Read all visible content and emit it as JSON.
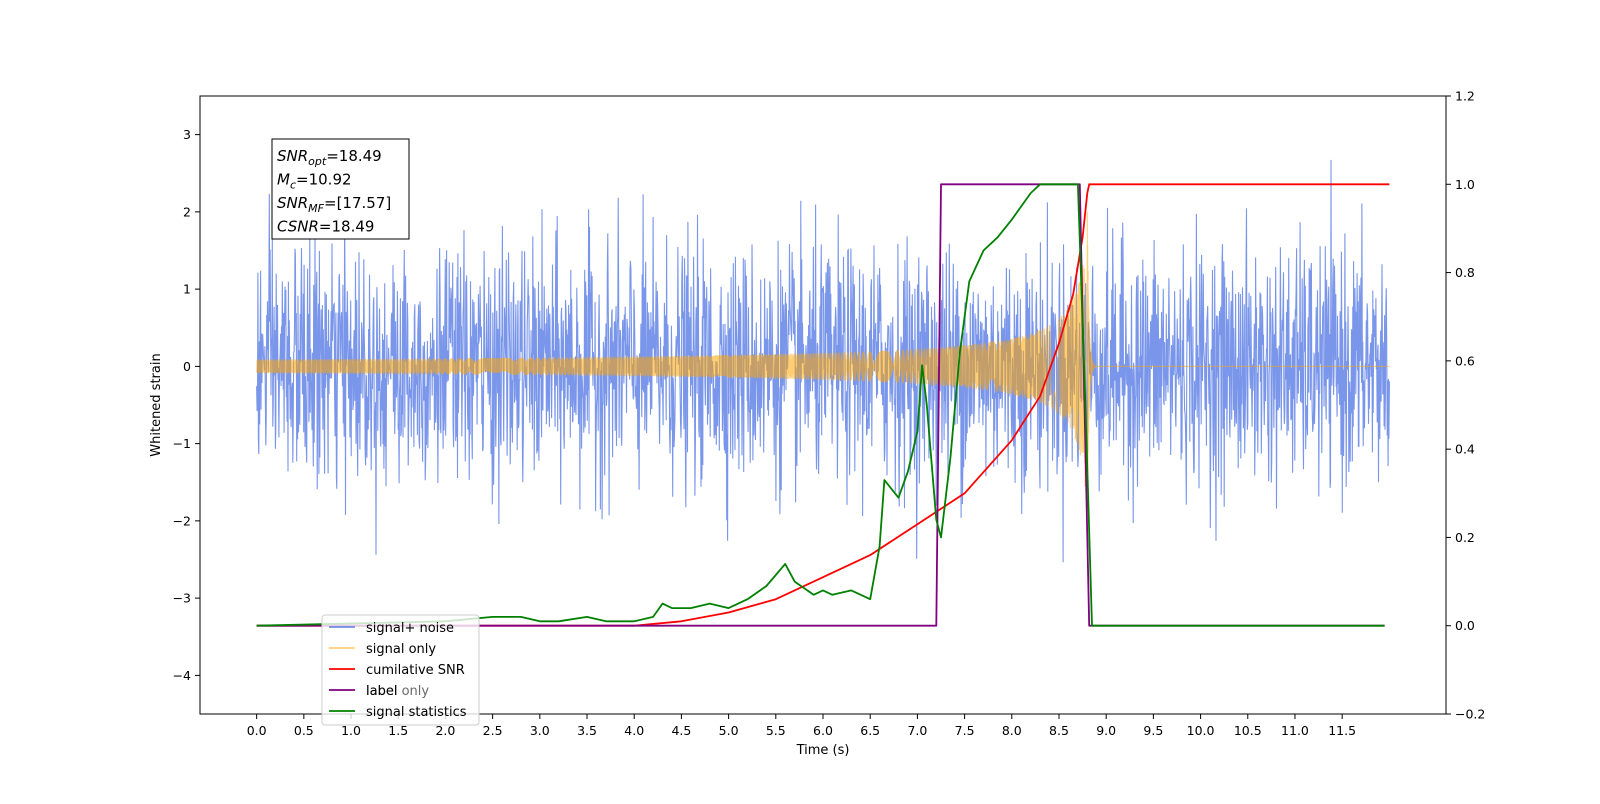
{
  "chart_data": {
    "type": "line",
    "title": "",
    "xlabel": "Time (s)",
    "ylabel": "Whitened strain",
    "y2label": "",
    "xlim": [
      -0.6,
      12.6
    ],
    "ylim": [
      -4.5,
      3.5
    ],
    "y2lim": [
      -0.2,
      1.2
    ],
    "xticks": [
      "0.0",
      "0.5",
      "1.0",
      "1.5",
      "2.0",
      "2.5",
      "3.0",
      "3.5",
      "4.0",
      "4.5",
      "5.0",
      "5.5",
      "6.0",
      "6.5",
      "7.0",
      "7.5",
      "8.0",
      "8.5",
      "9.0",
      "9.5",
      "10.0",
      "10.5",
      "11.0",
      "11.5"
    ],
    "yticks": [
      "3",
      "2",
      "1",
      "0",
      "−1",
      "−2",
      "−3",
      "−4"
    ],
    "y2ticks": [
      "1.2",
      "1.0",
      "0.8",
      "0.6",
      "0.4",
      "0.2",
      "0.0",
      "−0.2"
    ],
    "grid": false,
    "legend_position": "lower-left",
    "annotation": {
      "lines": [
        {
          "base": "SNR",
          "sub": "opt",
          "value": "=18.49"
        },
        {
          "base": "M",
          "sub": "c",
          "value": "=10.92"
        },
        {
          "base": "SNR",
          "sub": "MF",
          "value": "=[17.57]"
        },
        {
          "base": "CSNR",
          "sub": "",
          "value": "=18.49"
        }
      ]
    },
    "series": [
      {
        "name": "signal+ noise",
        "color": "#4169e1",
        "axis": "left",
        "kind": "noise",
        "std": 0.75,
        "x_range": [
          0.0,
          12.0
        ]
      },
      {
        "name": "signal only",
        "color": "#ffa500",
        "axis": "left",
        "kind": "chirp",
        "merger_time": 8.8,
        "amplitude_at_merger": 2.0
      },
      {
        "name": "cumilative SNR",
        "color": "#ff0000",
        "axis": "right",
        "x": [
          0.0,
          4.0,
          4.5,
          5.0,
          5.5,
          6.0,
          6.5,
          7.0,
          7.5,
          8.0,
          8.3,
          8.5,
          8.65,
          8.75,
          8.8,
          8.82,
          12.0
        ],
        "y": [
          0.0,
          0.0,
          0.01,
          0.03,
          0.06,
          0.11,
          0.16,
          0.23,
          0.3,
          0.42,
          0.52,
          0.64,
          0.75,
          0.88,
          0.98,
          1.0,
          1.0
        ]
      },
      {
        "name": "label",
        "display_label": "label",
        "overlapped_label": "label only",
        "color": "#800080",
        "axis": "right",
        "x": [
          0.0,
          7.2,
          7.25,
          8.72,
          8.82,
          11.95
        ],
        "y": [
          0.0,
          0.0,
          1.0,
          1.0,
          0.0,
          0.0
        ]
      },
      {
        "name": "signal statistics",
        "color": "#008000",
        "axis": "right",
        "x": [
          0.0,
          2.0,
          2.5,
          2.8,
          3.0,
          3.2,
          3.5,
          3.7,
          4.0,
          4.2,
          4.3,
          4.4,
          4.6,
          4.8,
          5.0,
          5.2,
          5.4,
          5.6,
          5.7,
          5.9,
          6.0,
          6.1,
          6.3,
          6.5,
          6.6,
          6.65,
          6.8,
          6.9,
          7.0,
          7.05,
          7.1,
          7.2,
          7.25,
          7.35,
          7.45,
          7.55,
          7.7,
          7.85,
          8.0,
          8.1,
          8.2,
          8.3,
          8.5,
          8.7,
          8.78,
          8.85,
          11.95
        ],
        "y": [
          0.0,
          0.01,
          0.02,
          0.02,
          0.01,
          0.01,
          0.02,
          0.01,
          0.01,
          0.02,
          0.05,
          0.04,
          0.04,
          0.05,
          0.04,
          0.06,
          0.09,
          0.14,
          0.1,
          0.07,
          0.08,
          0.07,
          0.08,
          0.06,
          0.18,
          0.33,
          0.29,
          0.35,
          0.44,
          0.59,
          0.5,
          0.24,
          0.2,
          0.38,
          0.62,
          0.78,
          0.85,
          0.88,
          0.92,
          0.95,
          0.98,
          1.0,
          1.0,
          1.0,
          0.5,
          0.0,
          0.0
        ]
      }
    ]
  }
}
